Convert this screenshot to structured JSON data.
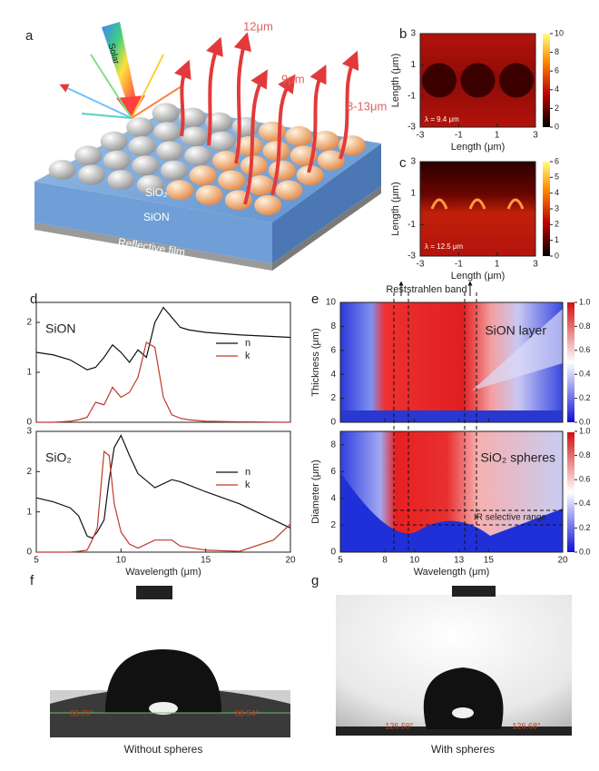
{
  "chart_data": [
    {
      "type": "line",
      "title": "SiON",
      "x": [
        5,
        6,
        7,
        7.5,
        8,
        8.5,
        9,
        9.5,
        10,
        10.5,
        11,
        11.5,
        12,
        12.5,
        13,
        13.5,
        14,
        15,
        17,
        20
      ],
      "series": [
        {
          "name": "n",
          "color": "#111111",
          "values": [
            1.4,
            1.35,
            1.25,
            1.15,
            1.05,
            1.1,
            1.3,
            1.55,
            1.4,
            1.2,
            1.45,
            1.3,
            2.0,
            2.3,
            2.1,
            1.9,
            1.85,
            1.8,
            1.75,
            1.7
          ]
        },
        {
          "name": "k",
          "color": "#c0392b",
          "values": [
            0,
            0,
            0.02,
            0.05,
            0.1,
            0.4,
            0.35,
            0.7,
            0.5,
            0.6,
            0.9,
            1.6,
            1.5,
            0.5,
            0.15,
            0.08,
            0.05,
            0.02,
            0.01,
            0
          ]
        }
      ],
      "xlim": [
        5,
        20
      ],
      "ylim": [
        0,
        2.4
      ],
      "yticks": [
        0,
        1,
        2
      ]
    },
    {
      "type": "line",
      "title": "SiO₂",
      "x": [
        5,
        6,
        7,
        7.5,
        8,
        8.3,
        8.6,
        9,
        9.3,
        9.6,
        10,
        10.5,
        11,
        12,
        13,
        13.5,
        15,
        17,
        19,
        20
      ],
      "series": [
        {
          "name": "n",
          "color": "#111111",
          "values": [
            1.35,
            1.25,
            1.1,
            0.9,
            0.4,
            0.35,
            0.5,
            0.8,
            1.8,
            2.6,
            2.9,
            2.4,
            1.95,
            1.6,
            1.8,
            1.75,
            1.5,
            1.2,
            0.8,
            0.6
          ]
        },
        {
          "name": "k",
          "color": "#c0392b",
          "values": [
            0,
            0,
            0,
            0.02,
            0.05,
            0.3,
            0.6,
            2.5,
            2.4,
            1.2,
            0.5,
            0.2,
            0.1,
            0.3,
            0.3,
            0.15,
            0.05,
            0.02,
            0.3,
            0.7
          ]
        }
      ],
      "xlim": [
        5,
        20
      ],
      "ylim": [
        0,
        3
      ],
      "xticks": [
        5,
        10,
        15,
        20
      ],
      "yticks": [
        0,
        1,
        2,
        3
      ],
      "xlabel": "Wavelength (μm)"
    }
  ],
  "figure": {
    "panel_labels": [
      "a",
      "b",
      "c",
      "d",
      "e",
      "f",
      "g"
    ],
    "a": {
      "solar": "Solar",
      "w12": "12μm",
      "w9": "9μm",
      "w813": "8-13μm",
      "sio2": "SiO₂",
      "sion": "SiON",
      "film": "Reflective film"
    },
    "b": {
      "xlim": [
        -3,
        3
      ],
      "ylim": [
        -3,
        3
      ],
      "xticks": [
        -3,
        -1,
        1,
        3
      ],
      "yticks": [
        -3,
        -1,
        1,
        3
      ],
      "xlabel": "Length (μm)",
      "ylabel": "Length (μm)",
      "clim": [
        0,
        10
      ],
      "cticks": [
        0,
        2,
        4,
        6,
        8,
        10
      ],
      "note": "λ = 9.4 μm"
    },
    "c": {
      "xlim": [
        -3,
        3
      ],
      "ylim": [
        -3,
        3
      ],
      "xticks": [
        -3,
        -1,
        1,
        3
      ],
      "yticks": [
        -3,
        -1,
        1,
        3
      ],
      "xlabel": "Length (μm)",
      "ylabel": "Length (μm)",
      "clim": [
        0,
        6
      ],
      "cticks": [
        0,
        1,
        2,
        3,
        4,
        5,
        6
      ],
      "note": "λ = 12.5 μm"
    },
    "e": {
      "xlim": [
        5,
        20
      ],
      "xticks": [
        5,
        8,
        10,
        13,
        15,
        20
      ],
      "xlabel": "Wavelength (μm)",
      "top": {
        "ylim": [
          0,
          10
        ],
        "yticks": [
          0,
          2,
          4,
          6,
          8,
          10
        ],
        "ylabel": "Thickness (μm)",
        "label": "SiON layer"
      },
      "bottom": {
        "ylim": [
          0,
          9
        ],
        "yticks": [
          0,
          2,
          4,
          6,
          8
        ],
        "ylabel": "Diameter (μm)",
        "label": "SiO₂ spheres",
        "range": "IR selective range"
      },
      "band": "Reststrahlen band",
      "clim": [
        0,
        1
      ],
      "cticks": [
        {
          "value": 0,
          "label": "0.0"
        },
        0.2,
        0.4,
        0.6,
        0.8,
        {
          "value": 1,
          "label": "1.0"
        }
      ]
    },
    "f": {
      "left_angle": "88.70°",
      "right_angle": "88.54°",
      "caption": "Without spheres"
    },
    "g": {
      "left_angle": "126.59°",
      "right_angle": "126.68°",
      "caption": "With spheres"
    }
  }
}
